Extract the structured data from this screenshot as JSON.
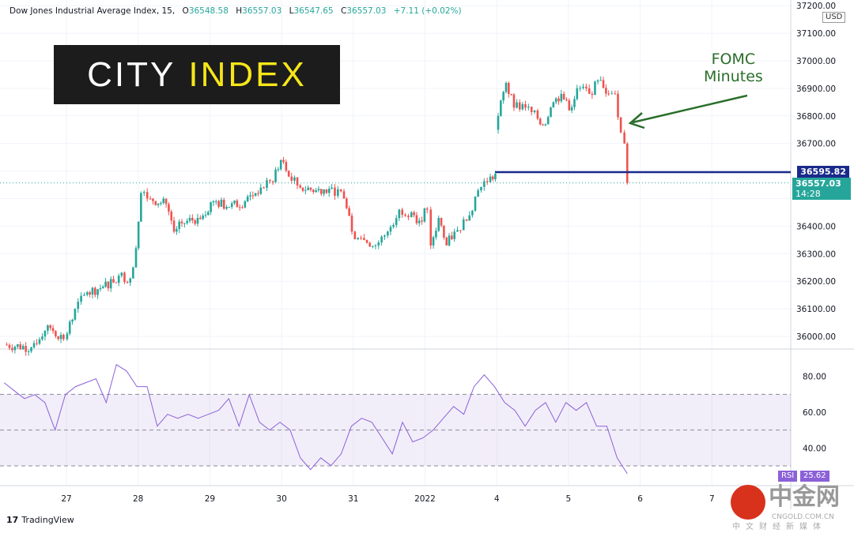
{
  "header": {
    "symbol": "Dow Jones Industrial Average Index, 15,",
    "open_label": "O",
    "open": "36548.58",
    "high_label": "H",
    "high": "36557.03",
    "low_label": "L",
    "low": "36547.65",
    "close_label": "C",
    "close": "36557.03",
    "change": "+7.11 (+0.02%)"
  },
  "logo": {
    "part1": "CITY",
    "part2": "INDEX"
  },
  "annotation": {
    "line1": "FOMC",
    "line2": "Minutes"
  },
  "axis": {
    "currency": "USD"
  },
  "price_tags": {
    "level": "36595.82",
    "last": "36557.03",
    "countdown": "14:28"
  },
  "rsi_tags": {
    "label": "RSI",
    "value": "25.62"
  },
  "colors": {
    "up": "#26a69a",
    "down": "#ef5350",
    "level": "#1a2a8c",
    "rsi": "#8b61d8",
    "arrow": "#2a6e2a"
  },
  "branding": {
    "tradingview": "TradingView",
    "cngold_big": "中金网",
    "cngold_domain": "CNGOLD.COM.CN",
    "cngold_sub": "中文财经新媒体"
  },
  "chart_data": {
    "type": "candlestick",
    "title": "Dow Jones Industrial Average Index, 15",
    "x_ticks": [
      "27",
      "28",
      "29",
      "30",
      "31",
      "2022",
      "4",
      "5",
      "6",
      "7"
    ],
    "y_ticks": [
      36000,
      36100,
      36200,
      36300,
      36400,
      36500,
      36600,
      36700,
      36800,
      36900,
      37000,
      37100,
      37200
    ],
    "ylim": [
      35970,
      37230
    ],
    "price_path": [
      [
        -0.87,
        35970
      ],
      [
        -0.49,
        35960
      ],
      [
        -0.26,
        36040
      ],
      [
        -0.04,
        35990
      ],
      [
        0.01,
        36010
      ],
      [
        0.12,
        36100
      ],
      [
        0.29,
        36160
      ],
      [
        0.51,
        36180
      ],
      [
        0.73,
        36220
      ],
      [
        0.89,
        36210
      ],
      [
        0.97,
        36320
      ],
      [
        1.04,
        36520
      ],
      [
        1.17,
        36500
      ],
      [
        1.39,
        36480
      ],
      [
        1.5,
        36380
      ],
      [
        1.61,
        36410
      ],
      [
        1.83,
        36430
      ],
      [
        2.05,
        36490
      ],
      [
        2.27,
        36470
      ],
      [
        2.49,
        36490
      ],
      [
        2.71,
        36540
      ],
      [
        2.88,
        36560
      ],
      [
        2.99,
        36640
      ],
      [
        3.1,
        36580
      ],
      [
        3.26,
        36540
      ],
      [
        3.48,
        36530
      ],
      [
        3.7,
        36540
      ],
      [
        3.87,
        36500
      ],
      [
        3.98,
        36380
      ],
      [
        4.15,
        36350
      ],
      [
        4.31,
        36330
      ],
      [
        4.48,
        36380
      ],
      [
        4.64,
        36460
      ],
      [
        4.81,
        36450
      ],
      [
        4.92,
        36420
      ],
      [
        5.03,
        36460
      ],
      [
        5.08,
        36330
      ],
      [
        5.19,
        36430
      ],
      [
        5.3,
        36330
      ],
      [
        5.41,
        36380
      ],
      [
        5.58,
        36420
      ],
      [
        5.74,
        36530
      ],
      [
        5.91,
        36580
      ],
      [
        5.98,
        36590
      ],
      [
        6.02,
        36800
      ],
      [
        6.13,
        36920
      ],
      [
        6.24,
        36830
      ],
      [
        6.4,
        36830
      ],
      [
        6.57,
        36790
      ],
      [
        6.68,
        36770
      ],
      [
        6.79,
        36850
      ],
      [
        6.9,
        36880
      ],
      [
        7.01,
        36820
      ],
      [
        7.12,
        36900
      ],
      [
        7.29,
        36880
      ],
      [
        7.45,
        36930
      ],
      [
        7.56,
        36880
      ],
      [
        7.65,
        36880
      ],
      [
        7.73,
        36740
      ],
      [
        7.78,
        36700
      ],
      [
        7.82,
        36557
      ]
    ],
    "horizontal_level": 36595.82,
    "last_price": 36557.03,
    "rsi": {
      "ylim": [
        20,
        90
      ],
      "y_ticks": [
        40,
        60,
        80
      ],
      "bands": [
        30,
        50,
        70
      ],
      "t_range": [
        -0.87,
        7.82
      ],
      "values": [
        76.5,
        72,
        67.6,
        69.8,
        65.4,
        50,
        69.8,
        74.3,
        76.5,
        78.7,
        65.4,
        86.6,
        83,
        74.3,
        74.3,
        52.2,
        58.8,
        56.6,
        58.8,
        56.6,
        58.8,
        61,
        67.6,
        52.2,
        69.8,
        54.4,
        50,
        54.4,
        50,
        34.5,
        27.9,
        34.5,
        30.1,
        36.7,
        52.2,
        56.6,
        54.4,
        45.6,
        36.7,
        54.4,
        43.4,
        45.6,
        50,
        56.6,
        63.2,
        58.8,
        74.3,
        80.9,
        74.3,
        65.4,
        61,
        52.2,
        61,
        65.4,
        54.4,
        65.4,
        61,
        65.4,
        52.2,
        52.2,
        34.5,
        25.6
      ]
    }
  }
}
